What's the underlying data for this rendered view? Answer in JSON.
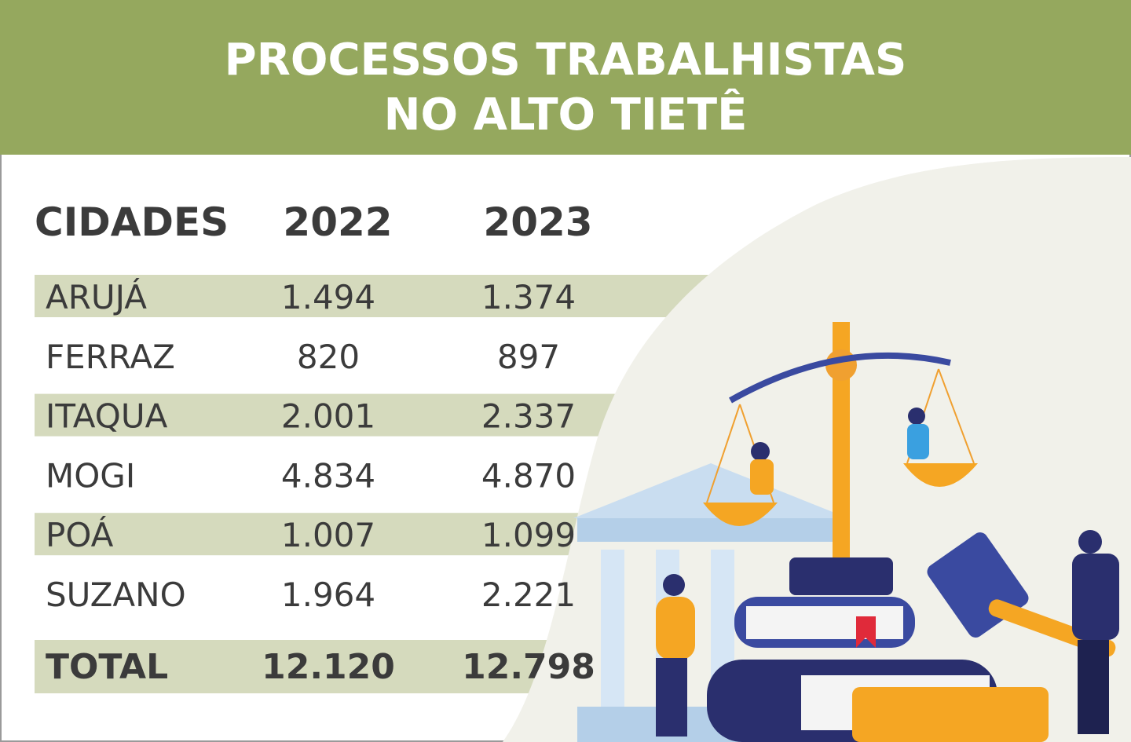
{
  "header": {
    "title_lines": [
      "PROCESSOS TRABALHISTAS",
      "NO ALTO TIETÊ"
    ]
  },
  "table": {
    "columns": [
      "CIDADES",
      "2022",
      "2023"
    ],
    "rows": [
      [
        "ARUJÁ",
        "1.494",
        "1.374"
      ],
      [
        "FERRAZ",
        "820",
        "897"
      ],
      [
        "ITAQUA",
        "2.001",
        "2.337"
      ],
      [
        "MOGI",
        "4.834",
        "4.870"
      ],
      [
        "POÁ",
        "1.007",
        "1.099"
      ],
      [
        "SUZANO",
        "1.964",
        "2.221"
      ]
    ],
    "total": [
      "TOTAL",
      "12.120",
      "12.798"
    ]
  }
}
